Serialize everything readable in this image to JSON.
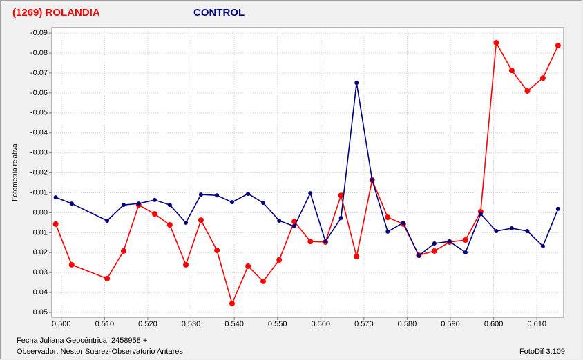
{
  "chart_data": {
    "type": "line",
    "y_label": "Fotometría relativa",
    "footer_left": [
      "Fecha Juliana Geocéntrica: 2458958 +",
      "Observador: Nestor Suarez-Observatorio Antares"
    ],
    "footer_right": "FotoDif 3.109",
    "y_inverted": true,
    "grid": true,
    "xlim": [
      0.4978,
      0.6162
    ],
    "ylim": [
      -0.0928,
      0.0524
    ],
    "xticks": [
      {
        "value": 0.5,
        "label": "0.500"
      },
      {
        "value": 0.51,
        "label": "0.510"
      },
      {
        "value": 0.52,
        "label": "0.520"
      },
      {
        "value": 0.53,
        "label": "0.530"
      },
      {
        "value": 0.54,
        "label": "0.540"
      },
      {
        "value": 0.55,
        "label": "0.550"
      },
      {
        "value": 0.56,
        "label": "0.560"
      },
      {
        "value": 0.57,
        "label": "0.570"
      },
      {
        "value": 0.58,
        "label": "0.580"
      },
      {
        "value": 0.59,
        "label": "0.590"
      },
      {
        "value": 0.6,
        "label": "0.600"
      },
      {
        "value": 0.61,
        "label": "0.610"
      }
    ],
    "yticks": [
      -0.09,
      -0.08,
      -0.07,
      -0.06,
      -0.05,
      -0.04,
      -0.03,
      -0.02,
      -0.01,
      {
        "value": 0,
        "label": "0.00"
      },
      0.01,
      0.02,
      0.03,
      0.04,
      0.05
    ],
    "x": [
      0.4987,
      0.5024,
      0.5106,
      0.5144,
      0.5179,
      0.5216,
      0.5251,
      0.5288,
      0.5323,
      0.536,
      0.5395,
      0.5432,
      0.5467,
      0.5504,
      0.5539,
      0.5576,
      0.5611,
      0.5647,
      0.5683,
      0.5719,
      0.5755,
      0.5791,
      0.5827,
      0.5863,
      0.5898,
      0.5935,
      0.597,
      0.6006,
      0.6042,
      0.6078,
      0.6114,
      0.6149
    ],
    "series": [
      {
        "name": "(1269) ROLANDIA",
        "color": "#ff0000",
        "values": [
          0.0057,
          0.0261,
          0.033,
          0.0192,
          -0.0039,
          0.0006,
          0.0061,
          0.0261,
          0.0037,
          0.0189,
          0.0455,
          0.0268,
          0.0344,
          0.0237,
          0.0044,
          0.0144,
          0.0147,
          -0.0087,
          0.022,
          -0.0164,
          0.0023,
          0.0057,
          0.0213,
          0.0192,
          0.0147,
          0.0137,
          -0.0005,
          -0.0852,
          -0.0713,
          -0.061,
          -0.0675,
          -0.0838
        ]
      },
      {
        "name": "CONTROL",
        "color": "#000080",
        "values": [
          -0.0077,
          -0.0046,
          0.004,
          -0.0039,
          -0.0046,
          -0.0064,
          -0.0039,
          0.005,
          -0.0091,
          -0.0087,
          -0.0053,
          -0.0095,
          -0.005,
          0.004,
          0.0068,
          -0.0098,
          0.0144,
          0.0026,
          -0.0651,
          -0.0164,
          0.0095,
          0.005,
          0.0216,
          0.0154,
          0.0144,
          0.0199,
          0.0006,
          0.0092,
          0.0078,
          0.0092,
          0.0168,
          -0.0019
        ]
      }
    ]
  }
}
